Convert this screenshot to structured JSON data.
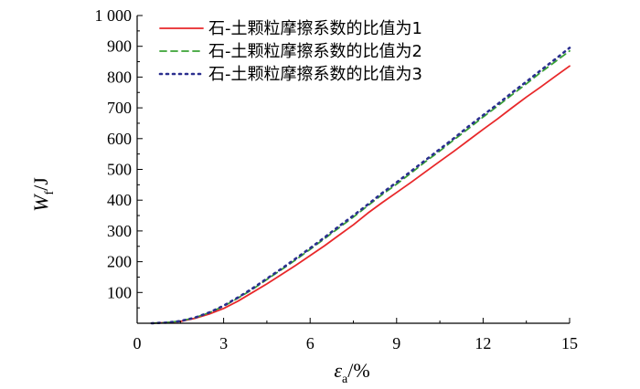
{
  "chart_data": {
    "type": "line",
    "xlabel": {
      "main": "ε",
      "sub": "a",
      "unit": "/%"
    },
    "ylabel": {
      "main": "W",
      "sub": "f",
      "unit": "/J"
    },
    "xlim": [
      0,
      15
    ],
    "ylim": [
      0,
      1000
    ],
    "xticks": [
      0,
      3,
      6,
      9,
      12,
      15
    ],
    "yticks": [
      100,
      200,
      300,
      400,
      500,
      600,
      700,
      800,
      900,
      1000
    ],
    "ytick_labels": [
      "100",
      "200",
      "300",
      "400",
      "500",
      "600",
      "700",
      "800",
      "900",
      "1 000"
    ],
    "xtick_labels": [
      "0",
      "3",
      "6",
      "9",
      "12",
      "15"
    ],
    "grid": false,
    "legend_position": "top-left",
    "x": [
      0.5,
      1.0,
      1.5,
      2.0,
      2.5,
      3.0,
      3.5,
      4.0,
      4.5,
      5.0,
      5.5,
      6.0,
      6.5,
      7.0,
      7.5,
      8.0,
      8.5,
      9.0,
      9.5,
      10.0,
      10.5,
      11.0,
      11.5,
      12.0,
      12.5,
      13.0,
      13.5,
      14.0,
      14.5,
      15.0
    ],
    "series": [
      {
        "name": "石-土颗粒摩擦系数的比值为1",
        "color": "#e8282a",
        "style": "solid",
        "values": [
          0,
          2,
          6,
          16,
          30,
          48,
          72,
          100,
          128,
          158,
          188,
          220,
          252,
          286,
          320,
          358,
          392,
          425,
          458,
          492,
          526,
          560,
          595,
          630,
          664,
          700,
          735,
          768,
          802,
          836
        ]
      },
      {
        "name": "石-土颗粒摩擦系数的比值为2",
        "color": "#3aa235",
        "style": "dashed",
        "values": [
          0,
          2,
          7,
          18,
          34,
          55,
          82,
          110,
          142,
          174,
          206,
          240,
          275,
          310,
          345,
          382,
          418,
          452,
          488,
          525,
          560,
          597,
          633,
          670,
          706,
          742,
          778,
          815,
          850,
          885
        ]
      },
      {
        "name": "石-土颗粒摩擦系数的比值为3",
        "color": "#2b2f8f",
        "style": "dotted",
        "values": [
          0,
          2,
          7,
          18,
          35,
          57,
          84,
          113,
          145,
          177,
          210,
          244,
          279,
          315,
          350,
          386,
          423,
          458,
          494,
          530,
          566,
          602,
          640,
          676,
          712,
          749,
          785,
          822,
          858,
          895
        ]
      }
    ]
  }
}
